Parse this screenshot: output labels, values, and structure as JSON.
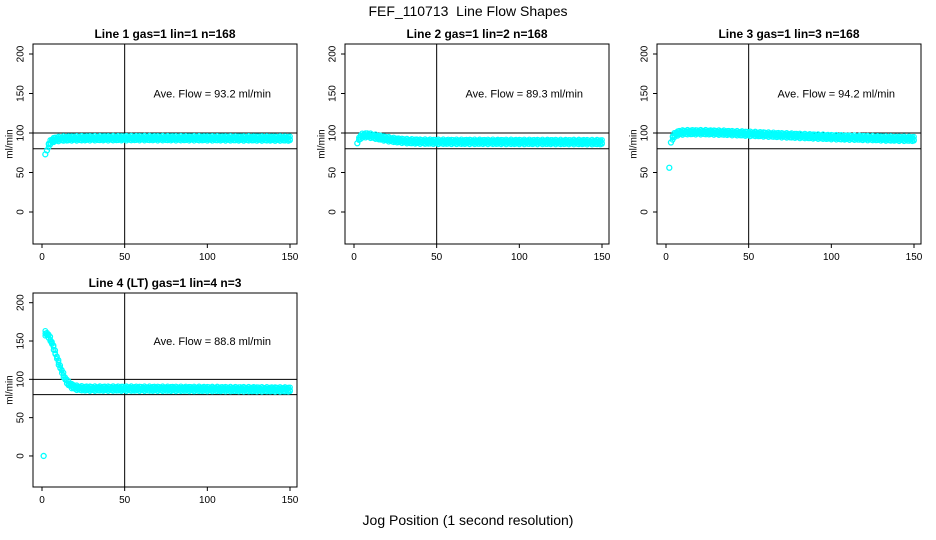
{
  "title": "FEF_110713  Line Flow Shapes",
  "xlabel": "Jog Position (1 second resolution)",
  "colors": {
    "points": "#00FFFF",
    "axis": "#000000",
    "background": "#FFFFFF"
  },
  "chart_data": [
    {
      "type": "scatter",
      "title": "Line 1 gas=1 lin=1 n=168",
      "ylabel": "ml/min",
      "annotation": "Ave. Flow =  93.2  ml/min",
      "ave_flow_ml_min": 93.2,
      "line": 1,
      "gas": 1,
      "lin": 1,
      "n": 168,
      "xlim": [
        0,
        150
      ],
      "ylim": [
        0,
        200
      ],
      "xticks": [
        0,
        50,
        100,
        150
      ],
      "yticks": [
        0,
        50,
        100,
        150,
        200
      ],
      "hlines": [
        80,
        100
      ],
      "vline": 50,
      "band": [
        [
          4,
          84.5
        ],
        [
          5,
          88
        ],
        [
          6,
          90.3
        ],
        [
          7,
          91.3
        ],
        [
          9,
          92.2
        ],
        [
          12,
          92.9
        ],
        [
          18,
          93.2
        ],
        [
          30,
          93.4
        ],
        [
          60,
          93.5
        ],
        [
          100,
          93.3
        ],
        [
          130,
          93.1
        ],
        [
          150,
          92.9
        ]
      ],
      "outliers": [
        [
          2,
          73
        ],
        [
          3,
          78
        ]
      ]
    },
    {
      "type": "scatter",
      "title": "Line 2 gas=1 lin=2 n=168",
      "ylabel": "ml/min",
      "annotation": "Ave. Flow =  89.3  ml/min",
      "ave_flow_ml_min": 89.3,
      "line": 2,
      "gas": 1,
      "lin": 2,
      "n": 168,
      "xlim": [
        0,
        150
      ],
      "ylim": [
        0,
        200
      ],
      "xticks": [
        0,
        50,
        100,
        150
      ],
      "yticks": [
        0,
        50,
        100,
        150,
        200
      ],
      "hlines": [
        80,
        100
      ],
      "vline": 50,
      "band": [
        [
          3,
          92.5
        ],
        [
          4,
          95
        ],
        [
          5,
          96.5
        ],
        [
          6,
          97.1
        ],
        [
          8,
          97.2
        ],
        [
          10,
          96.6
        ],
        [
          13,
          95.3
        ],
        [
          16,
          94
        ],
        [
          20,
          92.4
        ],
        [
          24,
          91.2
        ],
        [
          28,
          90.3
        ],
        [
          33,
          89.6
        ],
        [
          40,
          89.1
        ],
        [
          50,
          88.9
        ],
        [
          70,
          88.8
        ],
        [
          100,
          88.7
        ],
        [
          130,
          88.6
        ],
        [
          150,
          88.4
        ]
      ],
      "outliers": [
        [
          2,
          87
        ]
      ]
    },
    {
      "type": "scatter",
      "title": "Line 3 gas=1 lin=3 n=168",
      "ylabel": "ml/min",
      "annotation": "Ave. Flow =  94.2  ml/min",
      "ave_flow_ml_min": 94.2,
      "line": 3,
      "gas": 1,
      "lin": 3,
      "n": 168,
      "xlim": [
        0,
        150
      ],
      "ylim": [
        0,
        200
      ],
      "xticks": [
        0,
        50,
        100,
        150
      ],
      "yticks": [
        0,
        50,
        100,
        150,
        200
      ],
      "hlines": [
        80,
        100
      ],
      "vline": 50,
      "band": [
        [
          4,
          94
        ],
        [
          5,
          97
        ],
        [
          6,
          98.8
        ],
        [
          8,
          100.2
        ],
        [
          10,
          100.7
        ],
        [
          14,
          101
        ],
        [
          22,
          101
        ],
        [
          30,
          100.6
        ],
        [
          38,
          100.1
        ],
        [
          46,
          99.4
        ],
        [
          55,
          98.6
        ],
        [
          65,
          97.7
        ],
        [
          75,
          96.8
        ],
        [
          85,
          96
        ],
        [
          95,
          95.2
        ],
        [
          105,
          94.5
        ],
        [
          115,
          94
        ],
        [
          125,
          93.5
        ],
        [
          135,
          93
        ],
        [
          150,
          92.5
        ]
      ],
      "outliers": [
        [
          2,
          56
        ],
        [
          3,
          88
        ]
      ]
    },
    {
      "type": "scatter",
      "title": "Line 4 (LT) gas=1 lin=4 n=3",
      "ylabel": "ml/min",
      "annotation": "Ave. Flow =  88.8  ml/min",
      "ave_flow_ml_min": 88.8,
      "line": 4,
      "gas": 1,
      "lin": 4,
      "n": 3,
      "xlim": [
        0,
        150
      ],
      "ylim": [
        0,
        200
      ],
      "xticks": [
        0,
        50,
        100,
        150
      ],
      "yticks": [
        0,
        50,
        100,
        150,
        200
      ],
      "hlines": [
        80,
        100
      ],
      "vline": 50,
      "band": [
        [
          2,
          160
        ],
        [
          3,
          159
        ],
        [
          4,
          156.5
        ],
        [
          5,
          152.5
        ],
        [
          6,
          147.5
        ],
        [
          7,
          141.5
        ],
        [
          8,
          135
        ],
        [
          9,
          128.5
        ],
        [
          10,
          122
        ],
        [
          11,
          116
        ],
        [
          12,
          110.5
        ],
        [
          13,
          105.5
        ],
        [
          14,
          101
        ],
        [
          15,
          97.5
        ],
        [
          16,
          94.8
        ],
        [
          17,
          92.8
        ],
        [
          18,
          91.3
        ],
        [
          19,
          90.2
        ],
        [
          20,
          89.4
        ],
        [
          22,
          88.6
        ],
        [
          25,
          88.1
        ],
        [
          30,
          87.9
        ],
        [
          45,
          87.9
        ],
        [
          70,
          87.7
        ],
        [
          100,
          87.4
        ],
        [
          125,
          87.1
        ],
        [
          150,
          86.7
        ]
      ],
      "outliers": [
        [
          1,
          0
        ]
      ]
    }
  ]
}
